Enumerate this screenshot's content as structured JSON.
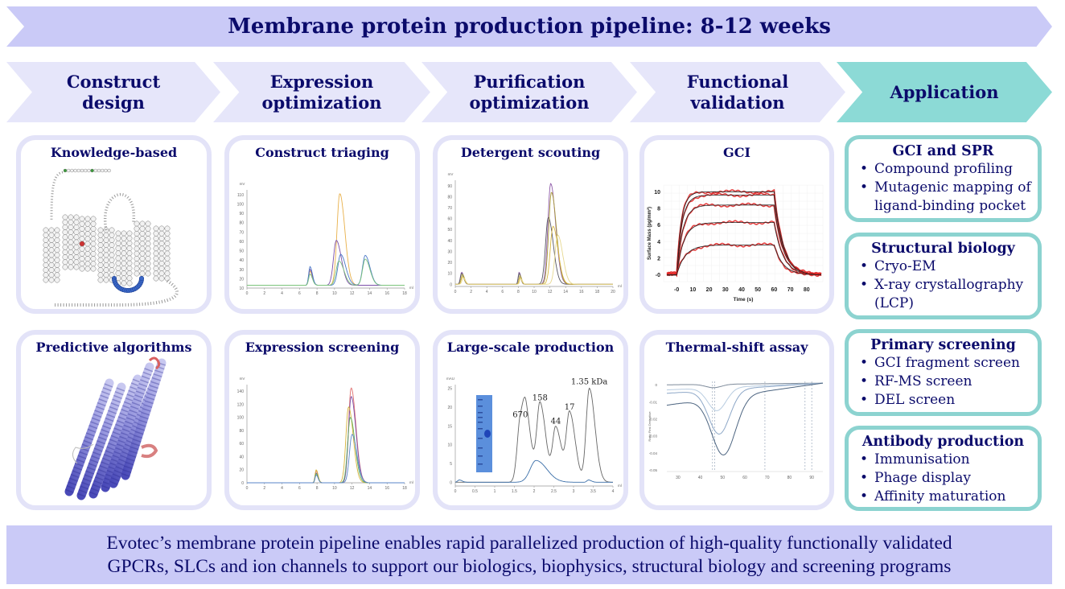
{
  "title": "Membrane protein production pipeline: 8-12 weeks",
  "stages": [
    {
      "line1": "Construct",
      "line2": "design"
    },
    {
      "line1": "Expression",
      "line2": "optimization"
    },
    {
      "line1": "Purification",
      "line2": "optimization"
    },
    {
      "line1": "Functional",
      "line2": "validation"
    },
    {
      "line1": "Application",
      "line2": ""
    }
  ],
  "cards": {
    "knowledge_based": {
      "title": "Knowledge-based",
      "image": "GPCR snake-plot topology diagram"
    },
    "predictive_algorithms": {
      "title": "Predictive algorithms",
      "image": "protein helix ribbon model"
    },
    "construct_triaging": {
      "title": "Construct triaging"
    },
    "expression_screening": {
      "title": "Expression screening"
    },
    "detergent_scouting": {
      "title": "Detergent scouting"
    },
    "large_scale_production": {
      "title": "Large-scale production",
      "image_inset": "SDS-PAGE gel lane"
    },
    "gci": {
      "title": "GCI"
    },
    "thermal_shift": {
      "title": "Thermal-shift assay"
    }
  },
  "applications": [
    {
      "title": "GCI and SPR",
      "items": [
        "Compound profiling",
        "Mutagenic mapping of ligand-binding pocket"
      ]
    },
    {
      "title": "Structural biology",
      "items": [
        "Cryo-EM",
        "X-ray crystallography (LCP)"
      ]
    },
    {
      "title": "Primary screening",
      "items": [
        "GCI fragment screen",
        "RF-MS screen",
        "DEL screen"
      ]
    },
    {
      "title": "Antibody production",
      "items": [
        "Immunisation",
        "Phage display",
        "Affinity maturation"
      ]
    }
  ],
  "footer": {
    "line1": "Evotec’s membrane protein pipeline enables rapid parallelized production of high-quality functionally validated",
    "line2": "GPCRs, SLCs and ion channels to support our biologics, biophysics, structural biology and screening programs"
  },
  "colors": {
    "text": "#0b0b6b",
    "title_arrow": "#cacaf7",
    "stage": "#e6e6fa",
    "application": "#8cdad6",
    "card_border": "#e3e3f8",
    "app_border": "#8cd3d0"
  },
  "chart_data": [
    {
      "id": "construct_triaging",
      "type": "line",
      "title": "Construct triaging",
      "xlabel": "ml",
      "ylabel": "mV",
      "xlim": [
        0,
        18
      ],
      "ylim": [
        10,
        115
      ],
      "xticks": [
        0,
        2,
        4,
        6,
        8,
        10,
        12,
        14,
        16,
        18
      ],
      "yticks": [
        10,
        20,
        30,
        40,
        50,
        60,
        70,
        80,
        90,
        100,
        110
      ],
      "series": [
        {
          "name": "orange",
          "color": "#e8b04a",
          "peaks": [
            [
              7.2,
              28
            ],
            [
              10.6,
              111
            ]
          ],
          "baseline": 13
        },
        {
          "name": "purple",
          "color": "#7b4fa8",
          "peaks": [
            [
              7.2,
              30
            ],
            [
              10.2,
              61
            ]
          ],
          "baseline": 13
        },
        {
          "name": "blue",
          "color": "#4a78c8",
          "peaks": [
            [
              7.2,
              33
            ],
            [
              10.7,
              46
            ],
            [
              13.5,
              45
            ]
          ],
          "baseline": 13
        },
        {
          "name": "green",
          "color": "#7cc47c",
          "peaks": [
            [
              7.2,
              25
            ],
            [
              10.5,
              39
            ],
            [
              13.5,
              41
            ]
          ],
          "baseline": 13
        }
      ]
    },
    {
      "id": "expression_screening",
      "type": "line",
      "title": "Expression screening",
      "xlabel": "ml",
      "ylabel": "mV",
      "xlim": [
        0,
        18
      ],
      "ylim": [
        0,
        150
      ],
      "xticks": [
        0,
        2,
        4,
        6,
        8,
        10,
        12,
        14,
        16,
        18
      ],
      "yticks": [
        0,
        20,
        40,
        60,
        80,
        100,
        120,
        140
      ],
      "series": [
        {
          "name": "red",
          "color": "#e07070",
          "peaks": [
            [
              7.9,
              18
            ],
            [
              11.9,
              145
            ]
          ]
        },
        {
          "name": "purple",
          "color": "#7b4fa8",
          "peaks": [
            [
              7.9,
              15
            ],
            [
              11.9,
              132
            ]
          ]
        },
        {
          "name": "yellow",
          "color": "#d6b43a",
          "peaks": [
            [
              7.9,
              20
            ],
            [
              11.6,
              116
            ]
          ]
        },
        {
          "name": "green",
          "color": "#5fae5f",
          "peaks": [
            [
              7.9,
              14
            ],
            [
              11.8,
              100
            ]
          ]
        },
        {
          "name": "blue",
          "color": "#5a86c8",
          "peaks": [
            [
              7.9,
              12
            ],
            [
              12.0,
              74
            ]
          ]
        }
      ]
    },
    {
      "id": "detergent_scouting",
      "type": "line",
      "title": "Detergent scouting",
      "xlabel": "ml",
      "ylabel": "mV",
      "xlim": [
        0,
        20
      ],
      "ylim": [
        -2,
        95
      ],
      "xticks": [
        0,
        2,
        4,
        6,
        8,
        10,
        12,
        14,
        16,
        18,
        20
      ],
      "yticks": [
        0,
        10,
        20,
        30,
        40,
        50,
        60,
        70,
        80,
        90
      ],
      "series": [
        {
          "name": "purple",
          "color": "#8e5aa8",
          "peaks": [
            [
              0.8,
              11
            ],
            [
              8.1,
              11
            ],
            [
              12.1,
              92
            ]
          ]
        },
        {
          "name": "dark",
          "color": "#555560",
          "peaks": [
            [
              0.8,
              10
            ],
            [
              8.1,
              10
            ],
            [
              11.8,
              61
            ]
          ]
        },
        {
          "name": "olive",
          "color": "#a89a3a",
          "peaks": [
            [
              0.9,
              9
            ],
            [
              8.2,
              8
            ],
            [
              12.2,
              84
            ]
          ]
        },
        {
          "name": "gold",
          "color": "#d8b840",
          "peaks": [
            [
              0.9,
              7
            ],
            [
              8.2,
              6
            ],
            [
              12.4,
              53
            ]
          ]
        },
        {
          "name": "pale",
          "color": "#e6d890",
          "peaks": [
            [
              1.0,
              6
            ],
            [
              8.3,
              5
            ],
            [
              13.0,
              45
            ]
          ]
        }
      ]
    },
    {
      "id": "large_scale_production",
      "type": "line",
      "title": "Large-scale production",
      "xlabel": "ml",
      "ylabel": "mAU",
      "xlim": [
        0,
        4
      ],
      "ylim": [
        -1,
        26
      ],
      "xticks": [
        0,
        0.5,
        1,
        1.5,
        2,
        2.5,
        3,
        3.5,
        4
      ],
      "yticks": [
        0,
        5,
        10,
        15,
        20,
        25
      ],
      "annotations": [
        {
          "label": "670",
          "x": 1.65,
          "y": 16.2
        },
        {
          "label": "158",
          "x": 2.15,
          "y": 20.8
        },
        {
          "label": "44",
          "x": 2.55,
          "y": 14.5
        },
        {
          "label": "17",
          "x": 2.9,
          "y": 18.3
        },
        {
          "label": "1.35 kDa",
          "x": 3.4,
          "y": 25.0
        }
      ],
      "series": [
        {
          "name": "standards",
          "color": "#666666",
          "peaks": [
            [
              1.65,
              16.2
            ],
            [
              1.8,
              12
            ],
            [
              2.15,
              20.8
            ],
            [
              2.55,
              14.5
            ],
            [
              2.9,
              18.3
            ],
            [
              3.4,
              25.0
            ]
          ]
        },
        {
          "name": "sample",
          "color": "#3a6ea8",
          "peaks": [
            [
              0.1,
              0.6
            ],
            [
              2.05,
              5.8
            ],
            [
              3.38,
              0.6
            ]
          ]
        }
      ]
    },
    {
      "id": "gci",
      "type": "line",
      "title": "GCI",
      "xlabel": "Time (s)",
      "ylabel": "Surface Mass (pg/mm²)",
      "xlim": [
        -8,
        90
      ],
      "ylim": [
        -0.8,
        10.8
      ],
      "xticks": [
        0,
        10,
        20,
        30,
        40,
        50,
        60,
        70,
        80
      ],
      "xticklabels": [
        "-0",
        "10",
        "20",
        "30",
        "40",
        "50",
        "60",
        "70",
        "80"
      ],
      "yticks": [
        0,
        2,
        4,
        6,
        8,
        10
      ],
      "yticklabels": [
        "-0",
        "2",
        "4",
        "6",
        "8",
        "10"
      ],
      "series": [
        {
          "name": "conc-1",
          "plateau": 10.0
        },
        {
          "name": "conc-2",
          "plateau": 9.6
        },
        {
          "name": "conc-3",
          "plateau": 8.4
        },
        {
          "name": "conc-4",
          "plateau": 6.3
        },
        {
          "name": "conc-5",
          "plateau": 3.6
        }
      ],
      "association_end_s": 60
    },
    {
      "id": "thermal_shift",
      "type": "line",
      "title": "Thermal-shift assay",
      "xlabel": "",
      "ylabel": "Ratio First Derivative",
      "xlim": [
        25,
        95
      ],
      "ylim": [
        -0.051,
        0.002
      ],
      "xticks": [
        30,
        40,
        50,
        60,
        70,
        80,
        90
      ],
      "yticks": [
        0,
        -0.01,
        -0.02,
        -0.03,
        -0.04,
        -0.05
      ],
      "vlines": [
        45.5,
        46.5,
        69,
        87,
        90
      ],
      "series": [
        {
          "name": "s1",
          "color": "#7d8a9a",
          "min": [
            46,
            -0.002
          ]
        },
        {
          "name": "s2",
          "color": "#b8cce0",
          "min": [
            47.5,
            -0.0165
          ]
        },
        {
          "name": "s3",
          "color": "#8ea8c8",
          "min": [
            48.5,
            -0.031
          ]
        },
        {
          "name": "s4",
          "color": "#4c6480",
          "min": [
            50.5,
            -0.046
          ]
        }
      ]
    }
  ]
}
